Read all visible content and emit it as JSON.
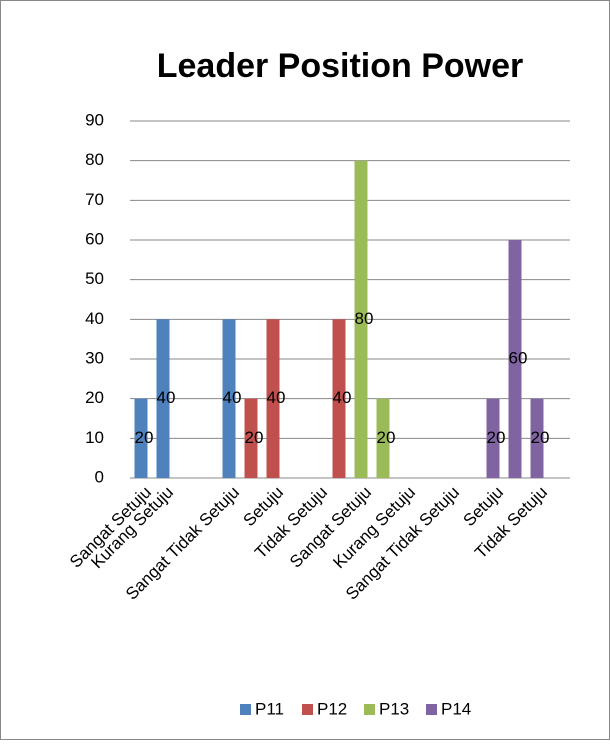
{
  "chart_data": {
    "type": "bar",
    "title": "Leader Position Power",
    "categories": [
      "Sangat Setuju",
      "Kurang Setuju",
      null,
      null,
      "Sangat Tidak Setuju",
      null,
      "Setuju",
      null,
      "Tidak Setuju",
      null,
      "Sangat Setuju",
      null,
      "Kurang Setuju",
      null,
      "Sangat Tidak Setuju",
      null,
      "Setuju",
      null,
      "Tidak Setuju",
      null
    ],
    "series": [
      {
        "name": "P11",
        "color": "#4f81bd",
        "values": [
          20,
          40,
          null,
          null,
          40,
          null,
          null,
          null,
          null,
          null,
          null,
          null,
          null,
          null,
          null,
          null,
          null,
          null,
          null,
          null
        ]
      },
      {
        "name": "P12",
        "color": "#c0504d",
        "values": [
          null,
          null,
          null,
          null,
          null,
          20,
          40,
          null,
          null,
          40,
          null,
          null,
          null,
          null,
          null,
          null,
          null,
          null,
          null,
          null
        ]
      },
      {
        "name": "P13",
        "color": "#9bbb59",
        "values": [
          null,
          null,
          null,
          null,
          null,
          null,
          null,
          null,
          null,
          null,
          80,
          20,
          null,
          null,
          null,
          null,
          null,
          null,
          null,
          null
        ]
      },
      {
        "name": "P14",
        "color": "#8064a2",
        "values": [
          null,
          null,
          null,
          null,
          null,
          null,
          null,
          null,
          null,
          null,
          null,
          null,
          null,
          null,
          null,
          null,
          20,
          60,
          20,
          null
        ]
      }
    ],
    "ylim": [
      0,
      90
    ],
    "yticks": [
      0,
      10,
      20,
      30,
      40,
      50,
      60,
      70,
      80,
      90
    ],
    "grid": true,
    "legend": "bottom"
  }
}
